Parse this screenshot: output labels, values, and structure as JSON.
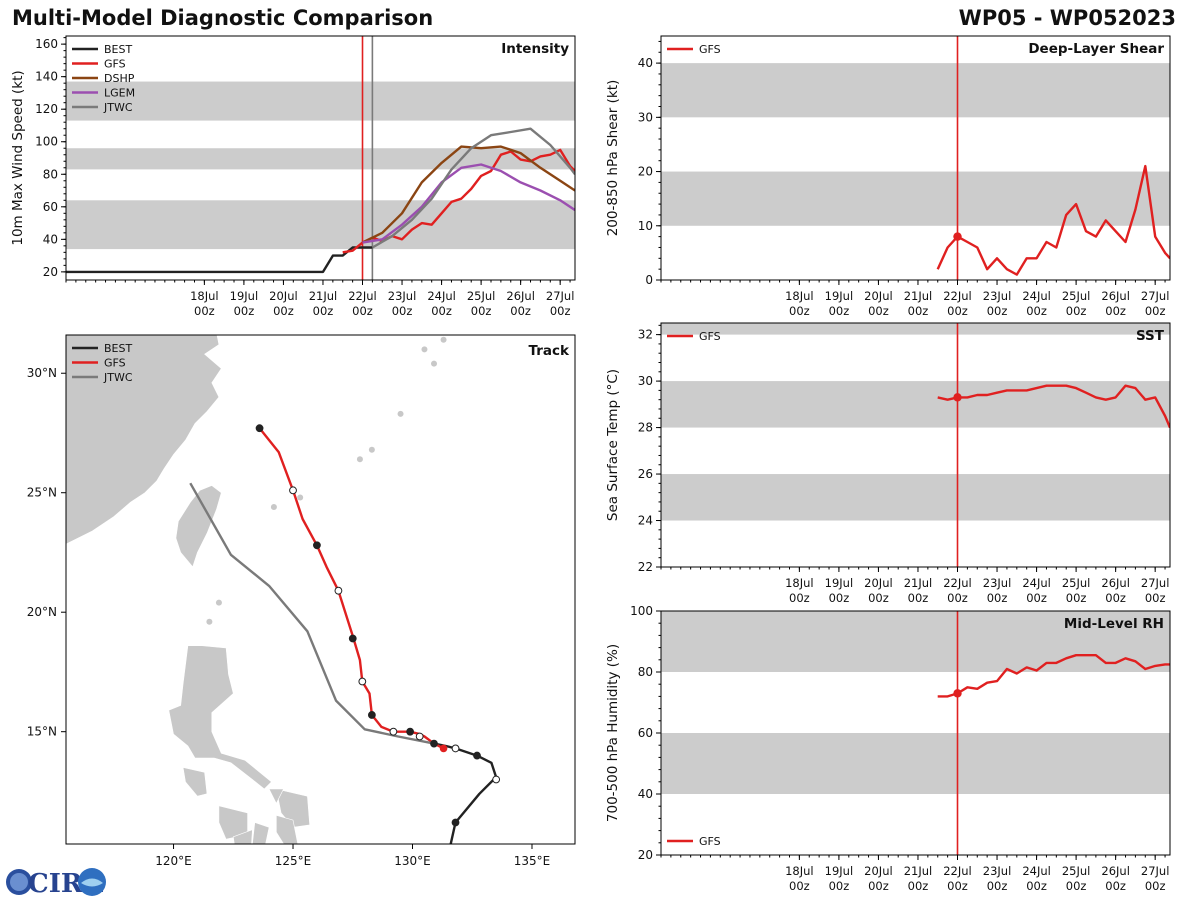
{
  "figure": {
    "title_left": "Multi-Model Diagnostic Comparison",
    "title_right": "WP05 - WP052023",
    "logo_text": "CIRA"
  },
  "colors": {
    "BEST": "#222222",
    "GFS": "#e02020",
    "DSHP": "#8b4513",
    "LGEM": "#9b4fb0",
    "JTWC": "#7a7a7a",
    "band": "#cccccc",
    "land": "#c8c8c8",
    "marker_line": "#e02020",
    "marker_line_jtwc": "#7a7a7a"
  },
  "chart_data": [
    {
      "id": "intensity",
      "type": "line",
      "title": "Intensity",
      "ylabel": "10m Max Wind Speed (kt)",
      "x_unit": "hours since 18Jul 00z",
      "xlim": [
        -84,
        225
      ],
      "ylim": [
        15,
        165
      ],
      "yticks": [
        20,
        40,
        60,
        80,
        100,
        120,
        140,
        160
      ],
      "xticks": [
        {
          "t": 0,
          "line1": "18Jul",
          "line2": "00z"
        },
        {
          "t": 24,
          "line1": "19Jul",
          "line2": "00z"
        },
        {
          "t": 48,
          "line1": "20Jul",
          "line2": "00z"
        },
        {
          "t": 72,
          "line1": "21Jul",
          "line2": "00z"
        },
        {
          "t": 96,
          "line1": "22Jul",
          "line2": "00z"
        },
        {
          "t": 120,
          "line1": "23Jul",
          "line2": "00z"
        },
        {
          "t": 144,
          "line1": "24Jul",
          "line2": "00z"
        },
        {
          "t": 168,
          "line1": "25Jul",
          "line2": "00z"
        },
        {
          "t": 192,
          "line1": "26Jul",
          "line2": "00z"
        },
        {
          "t": 216,
          "line1": "27Jul",
          "line2": "00z"
        }
      ],
      "bands": [
        [
          34,
          64
        ],
        [
          83,
          96
        ],
        [
          113,
          137
        ]
      ],
      "vlines": [
        {
          "t": 96,
          "series": "GFS"
        },
        {
          "t": 102,
          "series": "JTWC"
        }
      ],
      "legend": [
        "BEST",
        "GFS",
        "DSHP",
        "LGEM",
        "JTWC"
      ],
      "series": [
        {
          "name": "BEST",
          "x": [
            -84,
            72,
            78,
            84,
            90,
            96,
            102
          ],
          "y": [
            20,
            20,
            30,
            30,
            35,
            35,
            35
          ]
        },
        {
          "name": "GFS",
          "x": [
            84,
            90,
            96,
            102,
            108,
            114,
            120,
            126,
            132,
            138,
            144,
            150,
            156,
            162,
            168,
            174,
            180,
            186,
            192,
            198,
            204,
            210,
            216,
            222,
            225
          ],
          "y": [
            32,
            33,
            38,
            41,
            39,
            42,
            40,
            46,
            50,
            49,
            56,
            63,
            65,
            71,
            79,
            82,
            92,
            94,
            89,
            88,
            91,
            92,
            95,
            85,
            82
          ]
        },
        {
          "name": "DSHP",
          "x": [
            96,
            108,
            120,
            132,
            144,
            156,
            168,
            180,
            192,
            204,
            216,
            225
          ],
          "y": [
            38,
            44,
            56,
            75,
            87,
            97,
            96,
            97,
            93,
            84,
            76,
            70
          ]
        },
        {
          "name": "LGEM",
          "x": [
            96,
            108,
            120,
            132,
            144,
            156,
            168,
            180,
            192,
            204,
            216,
            225
          ],
          "y": [
            38,
            40,
            49,
            60,
            75,
            84,
            86,
            82,
            75,
            70,
            64,
            58
          ]
        },
        {
          "name": "JTWC",
          "x": [
            102,
            114,
            126,
            138,
            150,
            162,
            174,
            186,
            198,
            210,
            222,
            225
          ],
          "y": [
            35,
            42,
            52,
            65,
            83,
            96,
            104,
            106,
            108,
            98,
            84,
            80
          ]
        }
      ]
    },
    {
      "id": "shear",
      "type": "line",
      "title": "Deep-Layer Shear",
      "ylabel": "200-850 hPa Shear (kt)",
      "xlim": [
        -84,
        225
      ],
      "ylim": [
        0,
        45
      ],
      "yticks": [
        0,
        10,
        20,
        30,
        40
      ],
      "bands": [
        [
          10,
          20
        ],
        [
          30,
          40
        ]
      ],
      "vlines": [
        {
          "t": 96,
          "series": "GFS"
        }
      ],
      "legend": [
        "GFS"
      ],
      "marker": {
        "t": 96,
        "value": 8
      },
      "series": [
        {
          "name": "GFS",
          "x": [
            84,
            90,
            96,
            102,
            108,
            114,
            120,
            126,
            132,
            138,
            144,
            150,
            156,
            162,
            168,
            174,
            180,
            186,
            192,
            198,
            204,
            210,
            216,
            222,
            225
          ],
          "y": [
            2,
            6,
            8,
            7,
            6,
            2,
            4,
            2,
            1,
            4,
            4,
            7,
            6,
            12,
            14,
            9,
            8,
            11,
            9,
            7,
            13,
            21,
            8,
            5,
            4
          ]
        }
      ]
    },
    {
      "id": "sst",
      "type": "line",
      "title": "SST",
      "ylabel": "Sea Surface Temp (°C)",
      "xlim": [
        -84,
        225
      ],
      "ylim": [
        22,
        32.5
      ],
      "yticks": [
        22,
        24,
        26,
        28,
        30,
        32
      ],
      "bands": [
        [
          24,
          26
        ],
        [
          28,
          30
        ],
        [
          32,
          32.5
        ]
      ],
      "vlines": [
        {
          "t": 96,
          "series": "GFS"
        }
      ],
      "legend": [
        "GFS"
      ],
      "marker": {
        "t": 96,
        "value": 29.3
      },
      "series": [
        {
          "name": "GFS",
          "x": [
            84,
            90,
            96,
            102,
            108,
            114,
            120,
            126,
            132,
            138,
            144,
            150,
            156,
            162,
            168,
            174,
            180,
            186,
            192,
            198,
            204,
            210,
            216,
            222,
            225
          ],
          "y": [
            29.3,
            29.2,
            29.3,
            29.3,
            29.4,
            29.4,
            29.5,
            29.6,
            29.6,
            29.6,
            29.7,
            29.8,
            29.8,
            29.8,
            29.7,
            29.5,
            29.3,
            29.2,
            29.3,
            29.8,
            29.7,
            29.2,
            29.3,
            28.5,
            28.0
          ]
        }
      ]
    },
    {
      "id": "rh",
      "type": "line",
      "title": "Mid-Level RH",
      "ylabel": "700-500 hPa Humidity (%)",
      "xlim": [
        -84,
        225
      ],
      "ylim": [
        20,
        100
      ],
      "yticks": [
        20,
        40,
        60,
        80,
        100
      ],
      "bands": [
        [
          40,
          60
        ],
        [
          80,
          100
        ]
      ],
      "vlines": [
        {
          "t": 96,
          "series": "GFS"
        }
      ],
      "legend": [
        "GFS"
      ],
      "marker": {
        "t": 96,
        "value": 73
      },
      "series": [
        {
          "name": "GFS",
          "x": [
            84,
            90,
            96,
            102,
            108,
            114,
            120,
            126,
            132,
            138,
            144,
            150,
            156,
            162,
            168,
            174,
            180,
            186,
            192,
            198,
            204,
            210,
            216,
            222,
            225
          ],
          "y": [
            72,
            72,
            73,
            75,
            74.5,
            76.5,
            77,
            81,
            79.5,
            81.5,
            80.5,
            83,
            83,
            84.5,
            85.5,
            85.5,
            85.5,
            83,
            83,
            84.5,
            83.5,
            81,
            82,
            82.5,
            82.5
          ]
        }
      ]
    },
    {
      "id": "track",
      "type": "line",
      "title": "Track",
      "xlim": [
        115.5,
        136.8
      ],
      "ylim": [
        10.3,
        31.6
      ],
      "xticks": [
        {
          "v": 120,
          "label": "120°E"
        },
        {
          "v": 125,
          "label": "125°E"
        },
        {
          "v": 130,
          "label": "130°E"
        },
        {
          "v": 135,
          "label": "135°E"
        }
      ],
      "yticks": [
        {
          "v": 15,
          "label": "15°N"
        },
        {
          "v": 20,
          "label": "20°N"
        },
        {
          "v": 25,
          "label": "25°N"
        },
        {
          "v": 30,
          "label": "30°N"
        }
      ],
      "legend": [
        "BEST",
        "GFS",
        "JTWC"
      ],
      "series": [
        {
          "name": "BEST",
          "lon": [
            131.6,
            131.8,
            132.8,
            133.5,
            133.3,
            132.7,
            131.8,
            131.4,
            130.9
          ],
          "lat": [
            10.3,
            11.2,
            12.4,
            13.1,
            13.7,
            14.0,
            14.3,
            14.4,
            14.5
          ]
        },
        {
          "name": "GFS",
          "lon": [
            131.3,
            130.9,
            130.5,
            130.3,
            129.9,
            129.2,
            128.7,
            128.3,
            128.2,
            127.9,
            127.8,
            127.5,
            126.9,
            126.4,
            126.0,
            125.4,
            125.0,
            124.4,
            123.6
          ],
          "lat": [
            14.3,
            14.5,
            14.8,
            14.9,
            15.0,
            15.0,
            15.2,
            15.7,
            16.6,
            17.1,
            18.0,
            19.0,
            20.9,
            21.9,
            22.8,
            23.9,
            25.1,
            26.7,
            27.7
          ]
        },
        {
          "name": "JTWC",
          "lon": [
            130.9,
            129.4,
            128.0,
            126.8,
            125.6,
            124.0,
            122.4,
            120.7
          ],
          "lat": [
            14.5,
            14.8,
            15.1,
            16.3,
            19.2,
            21.1,
            22.4,
            25.4
          ]
        }
      ],
      "markers": [
        {
          "lon": 131.8,
          "lat": 11.2,
          "fill": "dark"
        },
        {
          "lon": 133.5,
          "lat": 13.0,
          "fill": "white"
        },
        {
          "lon": 132.7,
          "lat": 14.0,
          "fill": "dark"
        },
        {
          "lon": 131.8,
          "lat": 14.3,
          "fill": "white"
        },
        {
          "lon": 130.9,
          "lat": 14.5,
          "fill": "dark"
        },
        {
          "lon": 130.3,
          "lat": 14.8,
          "fill": "white"
        },
        {
          "lon": 129.9,
          "lat": 15.0,
          "fill": "dark"
        },
        {
          "lon": 129.2,
          "lat": 15.0,
          "fill": "white"
        },
        {
          "lon": 128.3,
          "lat": 15.7,
          "fill": "dark"
        },
        {
          "lon": 127.9,
          "lat": 17.1,
          "fill": "white"
        },
        {
          "lon": 127.5,
          "lat": 18.9,
          "fill": "dark"
        },
        {
          "lon": 126.9,
          "lat": 20.9,
          "fill": "white"
        },
        {
          "lon": 126.0,
          "lat": 22.8,
          "fill": "dark"
        },
        {
          "lon": 125.0,
          "lat": 25.1,
          "fill": "white"
        },
        {
          "lon": 123.6,
          "lat": 27.7,
          "fill": "dark"
        }
      ],
      "current_position": {
        "lon": 131.3,
        "lat": 14.3
      }
    }
  ]
}
